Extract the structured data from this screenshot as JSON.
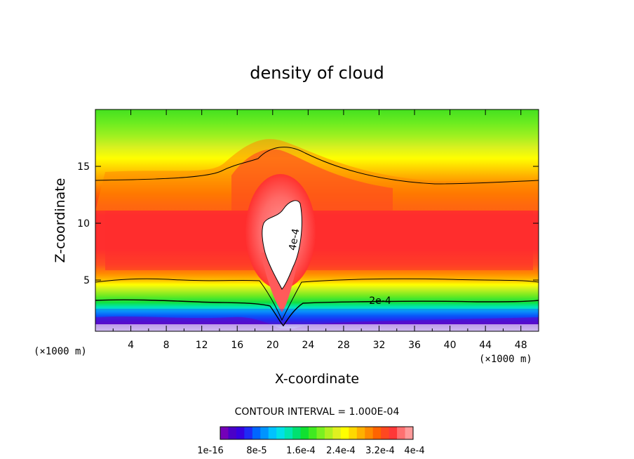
{
  "chart_data": {
    "type": "heatmap",
    "title": "density of cloud",
    "xlabel": "X-coordinate",
    "ylabel": "Z-coordinate",
    "x_unit_left": "(×1000 m)",
    "x_unit_right": "(×1000 m)",
    "xlim": [
      0,
      50
    ],
    "ylim": [
      0.5,
      20
    ],
    "xticks": [
      4,
      8,
      12,
      16,
      20,
      24,
      28,
      32,
      36,
      40,
      44,
      48
    ],
    "yticks": [
      5,
      10,
      15
    ],
    "contour_interval_text": "CONTOUR INTERVAL = 1.000E-04",
    "contour_lines": [
      {
        "label": "2e-4",
        "label_x": 31,
        "label_z": 2.8
      },
      {
        "label": "4e-4",
        "label_x": 22.5,
        "label_z": 7.5
      }
    ],
    "colorbar": {
      "colors": [
        "#7400b8",
        "#4a00c8",
        "#3700e0",
        "#1f2af5",
        "#0066ff",
        "#0094ff",
        "#00c2ff",
        "#00e0e8",
        "#00e6b0",
        "#00e070",
        "#10e030",
        "#40ea20",
        "#7af020",
        "#b0f020",
        "#e0f020",
        "#ffff00",
        "#ffd800",
        "#ffb000",
        "#ff8a00",
        "#ff6400",
        "#ff4820",
        "#ff3838",
        "#ff7070",
        "#ff9a9a"
      ],
      "labels": [
        "1e-16",
        "8e-5",
        "1.6e-4",
        "2.4e-4",
        "3.2e-4",
        "4e-4"
      ]
    }
  }
}
